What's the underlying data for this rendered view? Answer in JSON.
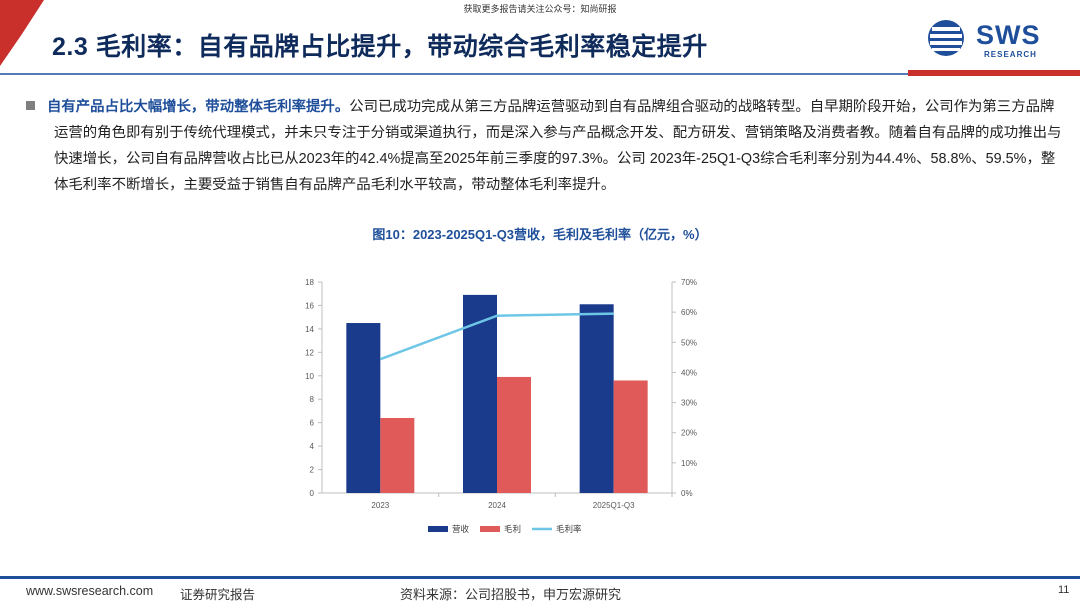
{
  "watermark": "获取更多报告请关注公众号：知尚研报",
  "header": {
    "title": "2.3 毛利率：自有品牌占比提升，带动综合毛利率稳定提升",
    "logo_text": "SWS",
    "logo_sub": "RESEARCH",
    "colors": {
      "title": "#0f2b5b",
      "accent_red": "#c9302c",
      "brand_blue": "#1f4f9a"
    }
  },
  "body": {
    "lead": "自有产品占比大幅增长，带动整体毛利率提升。",
    "paragraph": "公司已成功完成从第三方品牌运营驱动到自有品牌组合驱动的战略转型。自早期阶段开始，公司作为第三方品牌运营的角色即有别于传统代理模式，并未只专注于分销或渠道执行，而是深入参与产品概念开发、配方研发、营销策略及消费者教。随着自有品牌的成功推出与快速增长，公司自有品牌营收占比已从2023年的42.4%提高至2025年前三季度的97.3%。公司 2023年-25Q1-Q3综合毛利率分别为44.4%、58.8%、59.5%，整体毛利率不断增长，主要受益于销售自有品牌产品毛利水平较高，带动整体毛利率提升。"
  },
  "figure": {
    "title": "图10：2023-2025Q1-Q3营收，毛利及毛利率（亿元，%）"
  },
  "chart_data": {
    "type": "bar",
    "categories": [
      "2023",
      "2024",
      "2025Q1-Q3"
    ],
    "series": [
      {
        "name": "营收",
        "kind": "bar",
        "axis": "left",
        "color": "#1a3a8c",
        "values": [
          14.5,
          16.9,
          16.1
        ]
      },
      {
        "name": "毛利",
        "kind": "bar",
        "axis": "left",
        "color": "#e05a5a",
        "values": [
          6.4,
          9.9,
          9.6
        ]
      },
      {
        "name": "毛利率",
        "kind": "line",
        "axis": "right",
        "color": "#6ec6e6",
        "values": [
          44.4,
          58.8,
          59.5
        ]
      }
    ],
    "y_left": {
      "ylim": [
        0,
        18
      ],
      "ticks": [
        "0",
        "2",
        "4",
        "6",
        "8",
        "10",
        "12",
        "14",
        "16",
        "18"
      ]
    },
    "y_right": {
      "ylim": [
        0,
        70
      ],
      "ticks": [
        "0%",
        "10%",
        "20%",
        "30%",
        "40%",
        "50%",
        "60%",
        "70%"
      ]
    },
    "grid": false,
    "legend_position": "bottom"
  },
  "footer": {
    "url": "www.swsresearch.com",
    "report": "证券研究报告",
    "source": "资料来源：公司招股书，申万宏源研究",
    "page": "11"
  }
}
